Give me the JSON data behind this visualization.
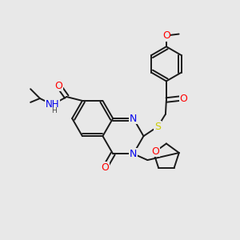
{
  "bg_color": "#e8e8e8",
  "bond_color": "#1a1a1a",
  "atom_colors": {
    "O": "#ff0000",
    "N": "#0000ee",
    "S": "#cccc00",
    "H": "#555555",
    "C": "#1a1a1a"
  },
  "font_size": 7.5,
  "fig_size": [
    3.0,
    3.0
  ],
  "dpi": 100
}
